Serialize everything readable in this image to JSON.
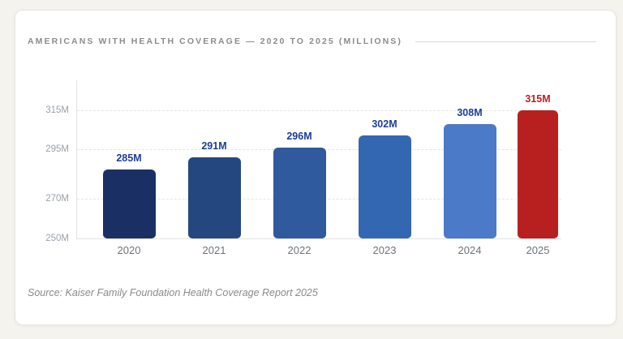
{
  "header": {
    "title": "AMERICANS WITH HEALTH COVERAGE — 2020 TO 2025 (MILLIONS)"
  },
  "footer": {
    "source": "Source: Kaiser Family Foundation Health Coverage Report 2025"
  },
  "chart_data": {
    "type": "bar",
    "title": "AMERICANS WITH HEALTH COVERAGE — 2020 TO 2025 (MILLIONS)",
    "categories": [
      "2020",
      "2021",
      "2022",
      "2023",
      "2024",
      "2025"
    ],
    "values": [
      285,
      291,
      296,
      302,
      308,
      315
    ],
    "value_labels": [
      "285M",
      "291M",
      "296M",
      "302M",
      "308M",
      "315M"
    ],
    "bar_colors": [
      "#1a3064",
      "#254780",
      "#2f5a9e",
      "#3467b2",
      "#4b7ac8",
      "#b7201e"
    ],
    "value_label_colors": [
      "#1d3e96",
      "#1d3e96",
      "#1d3e96",
      "#1d3e96",
      "#1d3e96",
      "#c2201f"
    ],
    "y_ticks": [
      "315M",
      "295M",
      "270M",
      "250M"
    ],
    "y_tick_values": [
      315,
      295,
      270,
      250
    ],
    "ylim": [
      250,
      330
    ],
    "grid": "horizontal-dashed",
    "legend": "none",
    "xlabel": "",
    "ylabel": "",
    "source": "Source: Kaiser Family Foundation Health Coverage Report 2025"
  },
  "colors": {
    "page_background": "#f5f3ee",
    "card_background": "#ffffff",
    "title_text": "#8b8b8b",
    "axis_line": "#e3e3e3",
    "gridline": "#e6e6e6",
    "y_tick_text": "#9aa0a8",
    "x_tick_text": "#6e737b",
    "source_text": "#8a8a8a",
    "highlight_red": "#b7201e",
    "label_blue": "#1d3e96"
  }
}
